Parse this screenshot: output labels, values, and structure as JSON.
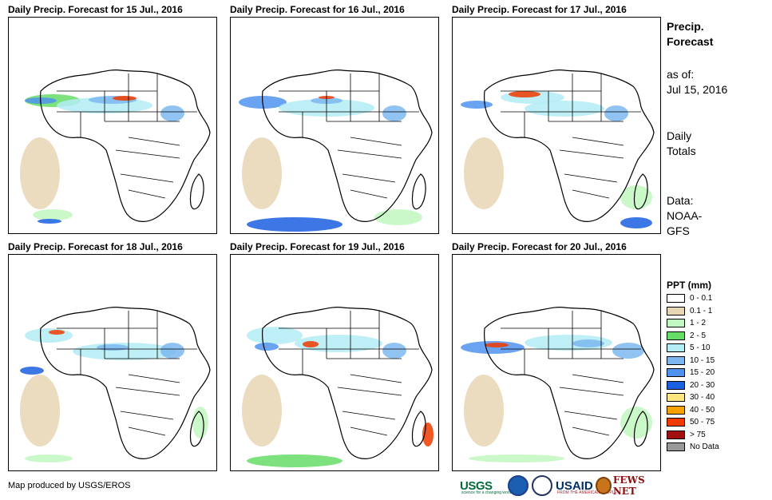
{
  "panels": [
    {
      "title": "Daily Precip. Forecast for 15 Jul., 2016"
    },
    {
      "title": "Daily Precip. Forecast for 16 Jul., 2016"
    },
    {
      "title": "Daily Precip. Forecast for 17 Jul., 2016"
    },
    {
      "title": "Daily Precip. Forecast for 18 Jul., 2016"
    },
    {
      "title": "Daily Precip. Forecast for 19 Jul., 2016"
    },
    {
      "title": "Daily Precip. Forecast for 20 Jul., 2016"
    }
  ],
  "sidebar": {
    "title_line1": "Precip.",
    "title_line2": "Forecast",
    "as_of_label": "as of:",
    "as_of_date": "Jul 15, 2016",
    "totals_line1": "Daily",
    "totals_line2": "Totals",
    "data_line1": "Data:",
    "data_line2": "NOAA-",
    "data_line3": "GFS"
  },
  "legend": {
    "title": "PPT (mm)",
    "items": [
      {
        "label": "0 - 0.1",
        "color": "#ffffff"
      },
      {
        "label": "0.1 - 1",
        "color": "#e8d5b4"
      },
      {
        "label": "1 - 2",
        "color": "#c1f7c0"
      },
      {
        "label": "2 - 5",
        "color": "#66dd66"
      },
      {
        "label": "5 - 10",
        "color": "#b3ecf5"
      },
      {
        "label": "10 - 15",
        "color": "#7db7f0"
      },
      {
        "label": "15 - 20",
        "color": "#4f93ee"
      },
      {
        "label": "20 - 30",
        "color": "#1a5fe0"
      },
      {
        "label": "30 - 40",
        "color": "#ffe680"
      },
      {
        "label": "40 - 50",
        "color": "#f7a200"
      },
      {
        "label": "50 - 75",
        "color": "#f03a00"
      },
      {
        "label": "> 75",
        "color": "#a01010"
      },
      {
        "label": "No Data",
        "color": "#999999"
      }
    ]
  },
  "footer": {
    "credit": "Map produced by USGS/EROS",
    "logos": {
      "usgs": "USGS",
      "usgs_tagline": "science for a changing world",
      "usaid": "USAID",
      "usaid_tagline": "FROM THE AMERICAN PEOPLE",
      "fews": "FEWS NET"
    }
  }
}
